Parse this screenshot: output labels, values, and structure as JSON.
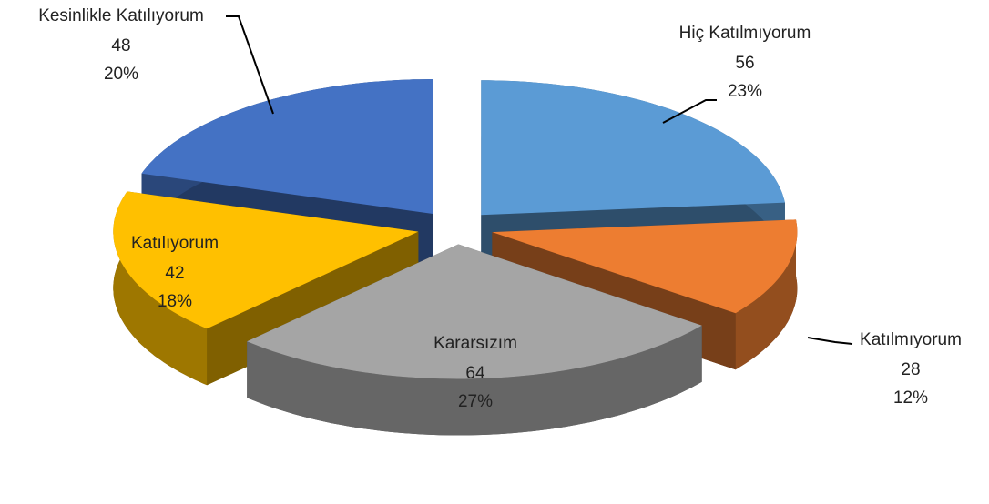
{
  "chart_data": {
    "type": "pie3d",
    "categories": [
      "Hiç Katılmıyorum",
      "Katılmıyorum",
      "Kararsızım",
      "Katılıyorum",
      "Kesinlikle Katılıyorum"
    ],
    "values": [
      56,
      28,
      64,
      42,
      48
    ],
    "percent_labels": [
      "23%",
      "12%",
      "27%",
      "18%",
      "20%"
    ],
    "colors": [
      "#5b9bd5",
      "#ed7d31",
      "#a5a5a5",
      "#ffc000",
      "#4472c4"
    ]
  }
}
